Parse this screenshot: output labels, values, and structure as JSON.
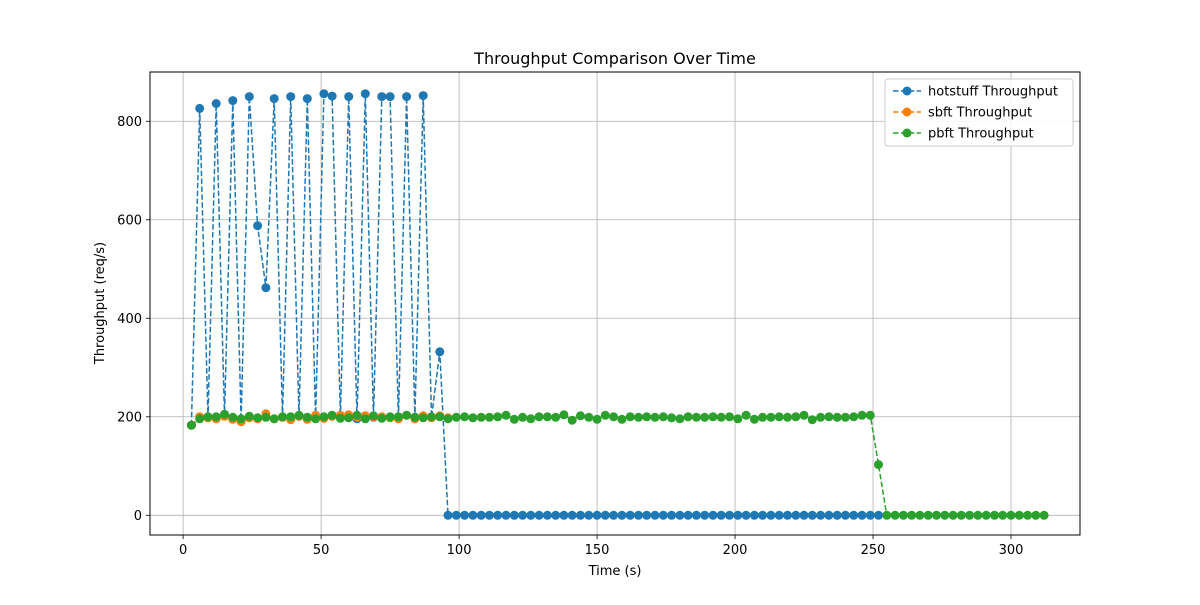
{
  "chart_data": {
    "type": "line",
    "title": "Throughput Comparison Over Time",
    "xlabel": "Time (s)",
    "ylabel": "Throughput (req/s)",
    "xlim": [
      -12,
      325
    ],
    "ylim": [
      -40,
      900
    ],
    "xticks": [
      0,
      50,
      100,
      150,
      200,
      250,
      300
    ],
    "yticks": [
      0,
      200,
      400,
      600,
      800
    ],
    "grid": true,
    "legend_position": "upper right",
    "line_style": "dashed",
    "marker": "circle",
    "series": [
      {
        "name": "hotstuff Throughput",
        "color": "#1f77b4",
        "x": [
          3,
          6,
          9,
          12,
          15,
          18,
          21,
          24,
          27,
          30,
          33,
          36,
          39,
          42,
          45,
          48,
          51,
          54,
          57,
          60,
          63,
          66,
          69,
          72,
          75,
          78,
          81,
          84,
          87,
          90,
          93,
          96,
          99,
          102,
          105,
          108,
          111,
          114,
          117,
          120,
          123,
          126,
          129,
          132,
          135,
          138,
          141,
          144,
          147,
          150,
          153,
          156,
          159,
          162,
          165,
          168,
          171,
          174,
          177,
          180,
          183,
          186,
          189,
          192,
          195,
          198,
          201,
          204,
          207,
          210,
          213,
          216,
          219,
          222,
          225,
          228,
          231,
          234,
          237,
          240,
          243,
          246,
          249,
          252
        ],
        "y": [
          183,
          826,
          199,
          836,
          202,
          842,
          193,
          850,
          588,
          462,
          846,
          199,
          850,
          201,
          846,
          197,
          856,
          851,
          199,
          850,
          196,
          856,
          199,
          850,
          850,
          197,
          850,
          199,
          852,
          199,
          332,
          0,
          0,
          0,
          0,
          0,
          0,
          0,
          0,
          0,
          0,
          0,
          0,
          0,
          0,
          0,
          0,
          0,
          0,
          0,
          0,
          0,
          0,
          0,
          0,
          0,
          0,
          0,
          0,
          0,
          0,
          0,
          0,
          0,
          0,
          0,
          0,
          0,
          0,
          0,
          0,
          0,
          0,
          0,
          0,
          0,
          0,
          0,
          0,
          0,
          0,
          0,
          0,
          0
        ]
      },
      {
        "name": "sbft Throughput",
        "color": "#ff7f0e",
        "x": [
          3,
          6,
          9,
          12,
          15,
          18,
          21,
          24,
          27,
          30,
          33,
          36,
          39,
          42,
          45,
          48,
          51,
          54,
          57,
          60,
          63,
          66,
          69,
          72,
          75,
          78,
          81,
          84,
          87,
          90,
          93,
          96
        ],
        "y": [
          183,
          200,
          198,
          196,
          201,
          195,
          190,
          198,
          196,
          206,
          196,
          199,
          194,
          201,
          195,
          203,
          197,
          201,
          203,
          204,
          199,
          202,
          200,
          200,
          198,
          196,
          203,
          196,
          202,
          198,
          202,
          198
        ]
      },
      {
        "name": "pbft Throughput",
        "color": "#2ca02c",
        "x": [
          3,
          6,
          9,
          12,
          15,
          18,
          21,
          24,
          27,
          30,
          33,
          36,
          39,
          42,
          45,
          48,
          51,
          54,
          57,
          60,
          63,
          66,
          69,
          72,
          75,
          78,
          81,
          84,
          87,
          90,
          93,
          96,
          99,
          102,
          105,
          108,
          111,
          114,
          117,
          120,
          123,
          126,
          129,
          132,
          135,
          138,
          141,
          144,
          147,
          150,
          153,
          156,
          159,
          162,
          165,
          168,
          171,
          174,
          177,
          180,
          183,
          186,
          189,
          192,
          195,
          198,
          201,
          204,
          207,
          210,
          213,
          216,
          219,
          222,
          225,
          228,
          231,
          234,
          237,
          240,
          243,
          246,
          249,
          252,
          255,
          258,
          261,
          264,
          267,
          270,
          273,
          276,
          279,
          282,
          285,
          288,
          291,
          294,
          297,
          300,
          303,
          306,
          309,
          312
        ],
        "y": [
          183,
          196,
          200,
          200,
          205,
          199,
          196,
          201,
          198,
          199,
          196,
          200,
          200,
          203,
          199,
          196,
          200,
          203,
          197,
          198,
          203,
          196,
          202,
          197,
          200,
          200,
          203,
          199,
          198,
          200,
          200,
          196,
          199,
          200,
          198,
          199,
          199,
          200,
          203,
          195,
          199,
          196,
          200,
          200,
          199,
          204,
          193,
          202,
          199,
          195,
          203,
          200,
          195,
          200,
          199,
          200,
          199,
          200,
          198,
          196,
          200,
          199,
          199,
          200,
          199,
          200,
          196,
          203,
          195,
          199,
          199,
          200,
          199,
          200,
          203,
          194,
          199,
          200,
          199,
          199,
          200,
          203,
          203,
          103,
          0,
          0,
          0,
          0,
          0,
          0,
          0,
          0,
          0,
          0,
          0,
          0,
          0,
          0,
          0,
          0,
          0,
          0,
          0,
          0
        ]
      }
    ]
  }
}
